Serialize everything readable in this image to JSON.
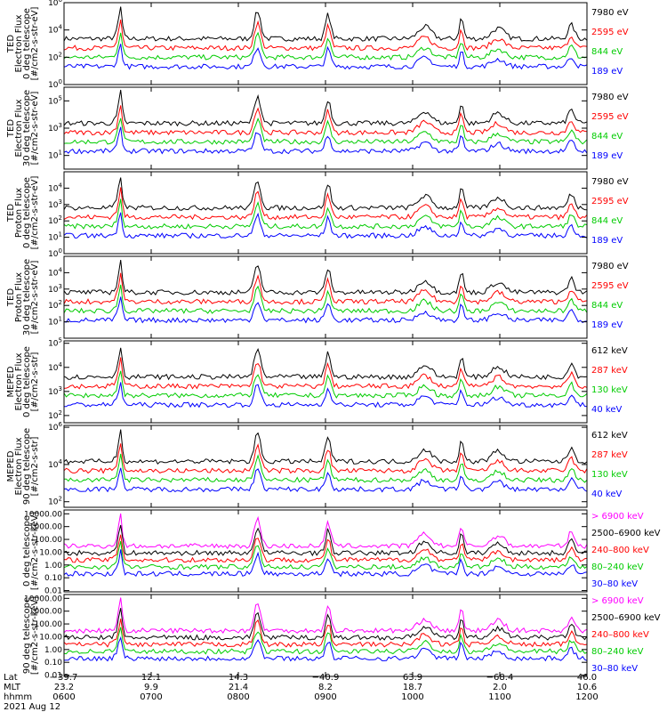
{
  "chart_data": {
    "type": "line",
    "date_label": "2021 Aug 12",
    "footer": {
      "row_labels": [
        "Lat",
        "MLT",
        "hhmm"
      ],
      "columns": [
        {
          "lat": "−39.7",
          "mlt": "23.2",
          "hhmm": "0600"
        },
        {
          "lat": "12.1",
          "mlt": "9.9",
          "hhmm": "0700"
        },
        {
          "lat": "14.3",
          "mlt": "21.4",
          "hhmm": "0800"
        },
        {
          "lat": "−40.9",
          "mlt": "8.2",
          "hhmm": "0900"
        },
        {
          "lat": "63.9",
          "mlt": "18.7",
          "hhmm": "1000"
        },
        {
          "lat": "−68.4",
          "mlt": "2.0",
          "hhmm": "1100"
        },
        {
          "lat": "46.0",
          "mlt": "10.6",
          "hhmm": "1200"
        }
      ]
    },
    "x_range": [
      "0600",
      "1200"
    ],
    "panels": [
      {
        "ylabel_lines": [
          "TED",
          "Electron Flux",
          "0 deg telescope",
          "[#/cm2-s-str-eV]"
        ],
        "ylim": [
          0,
          6
        ],
        "scale": "log",
        "yticks": [
          {
            "v": 0,
            "t": "10",
            "e": "0"
          },
          {
            "v": 2,
            "t": "10",
            "e": "2"
          },
          {
            "v": 4,
            "t": "10",
            "e": "4"
          },
          {
            "v": 6,
            "t": "10",
            "e": "6"
          }
        ],
        "series": [
          {
            "name": "7980 eV",
            "color": "#000000"
          },
          {
            "name": "2595 eV",
            "color": "#ff0000"
          },
          {
            "name": "844 eV",
            "color": "#00cc00"
          },
          {
            "name": "189 eV",
            "color": "#0000ff"
          }
        ]
      },
      {
        "ylabel_lines": [
          "TED",
          "Electron Flux",
          "30 deg telescope",
          "[#/cm2-s-str-eV]"
        ],
        "ylim": [
          0,
          6
        ],
        "scale": "log",
        "yticks": [
          {
            "v": 1,
            "t": "10",
            "e": "1"
          },
          {
            "v": 3,
            "t": "10",
            "e": "3"
          },
          {
            "v": 5,
            "t": "10",
            "e": "5"
          }
        ],
        "series": [
          {
            "name": "7980 eV",
            "color": "#000000"
          },
          {
            "name": "2595 eV",
            "color": "#ff0000"
          },
          {
            "name": "844 eV",
            "color": "#00cc00"
          },
          {
            "name": "189 eV",
            "color": "#0000ff"
          }
        ]
      },
      {
        "ylabel_lines": [
          "TED",
          "Proton Flux",
          "0 deg telescope",
          "[#/cm2-s-str-eV]"
        ],
        "ylim": [
          0,
          5
        ],
        "scale": "log",
        "yticks": [
          {
            "v": 0,
            "t": "10",
            "e": "0"
          },
          {
            "v": 1,
            "t": "10",
            "e": "1"
          },
          {
            "v": 2,
            "t": "10",
            "e": "2"
          },
          {
            "v": 3,
            "t": "10",
            "e": "3"
          },
          {
            "v": 4,
            "t": "10",
            "e": "4"
          }
        ],
        "series": [
          {
            "name": "7980 eV",
            "color": "#000000"
          },
          {
            "name": "2595 eV",
            "color": "#ff0000"
          },
          {
            "name": "844 eV",
            "color": "#00cc00"
          },
          {
            "name": "189 eV",
            "color": "#0000ff"
          }
        ]
      },
      {
        "ylabel_lines": [
          "TED",
          "Proton Flux",
          "30 deg telescope",
          "[#/cm2-s-str-eV]"
        ],
        "ylim": [
          0,
          5
        ],
        "scale": "log",
        "yticks": [
          {
            "v": 1,
            "t": "10",
            "e": "1"
          },
          {
            "v": 2,
            "t": "10",
            "e": "2"
          },
          {
            "v": 3,
            "t": "10",
            "e": "3"
          },
          {
            "v": 4,
            "t": "10",
            "e": "4"
          }
        ],
        "series": [
          {
            "name": "7980 eV",
            "color": "#000000"
          },
          {
            "name": "2595 eV",
            "color": "#ff0000"
          },
          {
            "name": "844 eV",
            "color": "#00cc00"
          },
          {
            "name": "189 eV",
            "color": "#0000ff"
          }
        ]
      },
      {
        "ylabel_lines": [
          "MEPED",
          "Electron Flux",
          "0 deg telescope",
          "[#/cm2-s-str]"
        ],
        "ylim": [
          1.7,
          5.1
        ],
        "scale": "log",
        "yticks": [
          {
            "v": 2,
            "t": "10",
            "e": "2"
          },
          {
            "v": 3,
            "t": "10",
            "e": "3"
          },
          {
            "v": 4,
            "t": "10",
            "e": "4"
          },
          {
            "v": 5,
            "t": "10",
            "e": "5"
          }
        ],
        "series": [
          {
            "name": "612 keV",
            "color": "#000000"
          },
          {
            "name": "287 keV",
            "color": "#ff0000"
          },
          {
            "name": "130 keV",
            "color": "#00cc00"
          },
          {
            "name": "40 keV",
            "color": "#0000ff"
          }
        ]
      },
      {
        "ylabel_lines": [
          "MEPED",
          "Electron Flux",
          "90 deg telescope",
          "[#/cm2-s-str]"
        ],
        "ylim": [
          1.7,
          6.1
        ],
        "scale": "log",
        "yticks": [
          {
            "v": 2,
            "t": "10",
            "e": "2"
          },
          {
            "v": 4,
            "t": "10",
            "e": "4"
          },
          {
            "v": 6,
            "t": "10",
            "e": "6"
          }
        ],
        "series": [
          {
            "name": "612 keV",
            "color": "#000000"
          },
          {
            "name": "287 keV",
            "color": "#ff0000"
          },
          {
            "name": "130 keV",
            "color": "#00cc00"
          },
          {
            "name": "40 keV",
            "color": "#0000ff"
          }
        ]
      },
      {
        "ylabel_lines": [
          "",
          "",
          "0 deg telescope",
          "[#/cm2-s-str-keV]"
        ],
        "ylim": [
          -2.1,
          4.3
        ],
        "scale": "log",
        "yticks": [
          {
            "v": -2,
            "t": "0.01"
          },
          {
            "v": -1,
            "t": "0.10"
          },
          {
            "v": 0,
            "t": "1.00"
          },
          {
            "v": 1,
            "t": "10.00"
          },
          {
            "v": 2,
            "t": "100.00"
          },
          {
            "v": 3,
            "t": "1000.00"
          },
          {
            "v": 4,
            "t": "10000.00"
          }
        ],
        "series": [
          {
            "name": "> 6900 keV",
            "color": "#ff00ff"
          },
          {
            "name": "2500–6900 keV",
            "color": "#000000"
          },
          {
            "name": "240–800 keV",
            "color": "#ff0000"
          },
          {
            "name": "80–240 keV",
            "color": "#00cc00"
          },
          {
            "name": "30–80 keV",
            "color": "#0000ff"
          }
        ]
      },
      {
        "ylabel_lines": [
          "",
          "",
          "90 deg telescope",
          "[#/cm2-s-str-keV]"
        ],
        "ylim": [
          -2.1,
          4.3
        ],
        "scale": "log",
        "yticks": [
          {
            "v": -2,
            "t": "0.01"
          },
          {
            "v": -1,
            "t": "0.10"
          },
          {
            "v": 0,
            "t": "1.00"
          },
          {
            "v": 1,
            "t": "10.00"
          },
          {
            "v": 2,
            "t": "100.00"
          },
          {
            "v": 3,
            "t": "1000.00"
          },
          {
            "v": 4,
            "t": "10000.00"
          }
        ],
        "series": [
          {
            "name": "> 6900 keV",
            "color": "#ff00ff"
          },
          {
            "name": "2500–6900 keV",
            "color": "#000000"
          },
          {
            "name": "240–800 keV",
            "color": "#ff0000"
          },
          {
            "name": "80–240 keV",
            "color": "#00cc00"
          },
          {
            "name": "30–80 keV",
            "color": "#0000ff"
          }
        ]
      }
    ]
  }
}
